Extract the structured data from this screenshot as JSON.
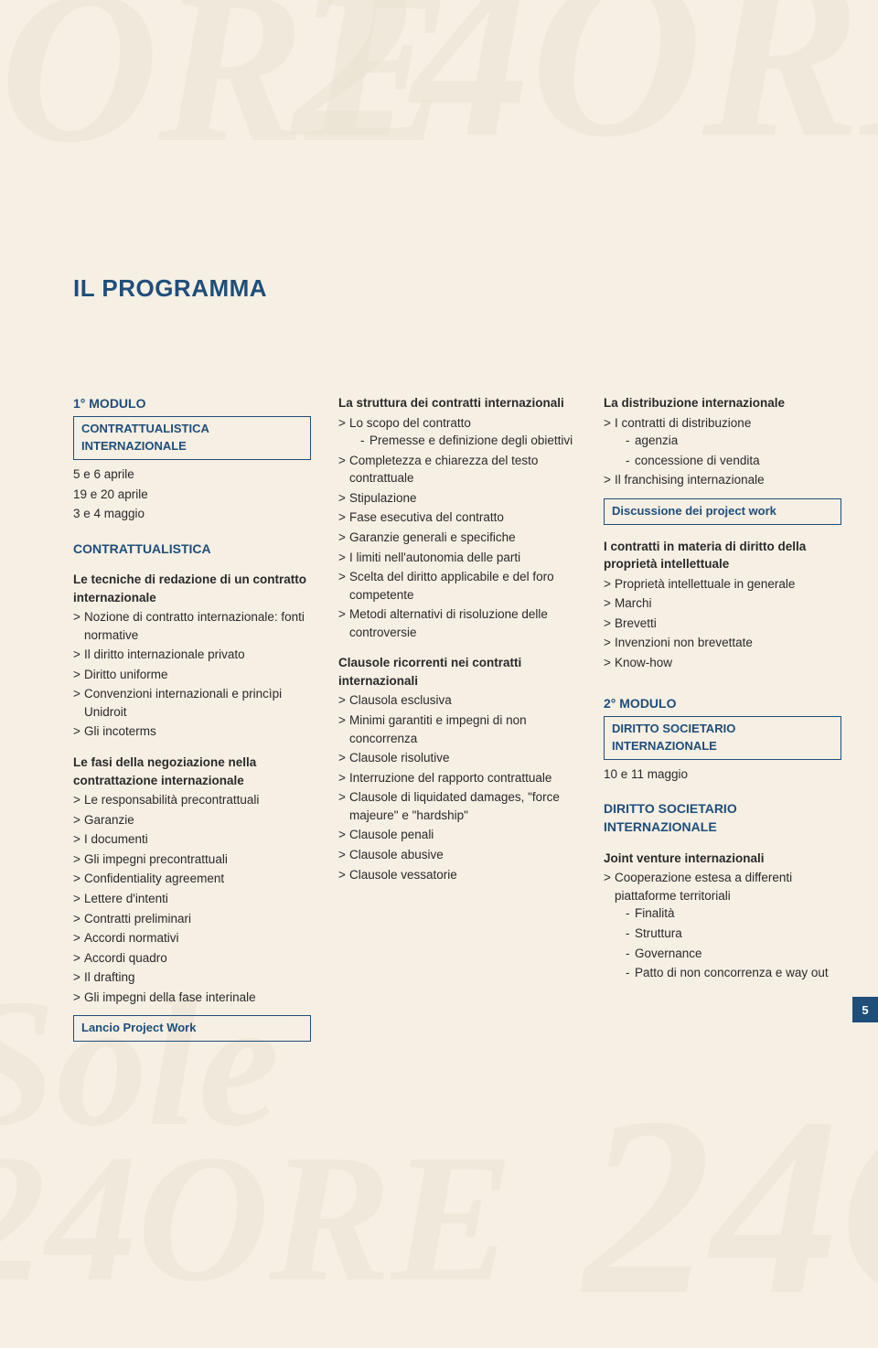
{
  "page": {
    "title": "IL PROGRAMMA",
    "number": "5",
    "background_color": "#f6efe4",
    "accent_color": "#1f4e79",
    "text_color": "#2a2a2a",
    "title_fontsize": 26,
    "body_fontsize": 13.5
  },
  "col1": {
    "module_label": "1° MODULO",
    "module_box": "CONTRATTUALISTICA INTERNAZIONALE",
    "dates": [
      "5 e 6 aprile",
      "19 e 20 aprile",
      "3 e 4 maggio"
    ],
    "section_head": "CONTRATTUALISTICA",
    "sub1_title": "Le tecniche di redazione di un contratto internazionale",
    "sub1_items": [
      "Nozione di contratto internazionale: fonti normative",
      "Il diritto internazionale privato",
      "Diritto uniforme",
      "Convenzioni internazionali e princìpi Unidroit",
      "Gli incoterms"
    ],
    "sub2_title": "Le fasi della negoziazione nella contrattazione internazionale",
    "sub2_items": [
      "Le responsabilità precontrattuali",
      "Garanzie",
      "I documenti",
      "Gli impegni precontrattuali",
      "Confidentiality agreement",
      "Lettere d'intenti",
      "Contratti preliminari",
      "Accordi normativi",
      "Accordi quadro",
      "Il drafting",
      "Gli impegni della fase interinale"
    ],
    "project_box": "Lancio Project Work"
  },
  "col2": {
    "sub1_title": "La struttura dei contratti internazionali",
    "sub1_items": [
      {
        "text": "Lo scopo del contratto",
        "sub": [
          "Premesse e definizione degli obiettivi"
        ]
      },
      {
        "text": "Completezza e chiarezza del testo contrattuale"
      },
      {
        "text": "Stipulazione"
      },
      {
        "text": "Fase esecutiva del contratto"
      },
      {
        "text": "Garanzie generali e specifiche"
      },
      {
        "text": "I limiti nell'autonomia delle parti"
      },
      {
        "text": "Scelta del diritto applicabile e del foro competente"
      },
      {
        "text": "Metodi alternativi di risoluzione delle controversie"
      }
    ],
    "sub2_title": "Clausole ricorrenti nei contratti internazionali",
    "sub2_items": [
      "Clausola esclusiva",
      "Minimi garantiti e impegni di non concorrenza",
      "Clausole risolutive",
      "Interruzione del rapporto contrattuale",
      "Clausole di liquidated damages, \"force majeure\" e \"hardship\"",
      "Clausole penali",
      "Clausole abusive",
      "Clausole vessatorie"
    ]
  },
  "col3": {
    "sub1_title": "La distribuzione internazionale",
    "sub1_items": [
      {
        "text": "I contratti di distribuzione",
        "sub": [
          "agenzia",
          "concessione di vendita"
        ]
      },
      {
        "text": "Il franchising internazionale"
      }
    ],
    "project_box": "Discussione dei project work",
    "sub2_title": "I contratti in materia di diritto della proprietà intellettuale",
    "sub2_items": [
      "Proprietà intellettuale in generale",
      "Marchi",
      "Brevetti",
      "Invenzioni non brevettate",
      "Know-how"
    ],
    "module_label": "2° MODULO",
    "module_box": "DIRITTO SOCIETARIO INTERNAZIONALE",
    "dates": [
      "10 e 11 maggio"
    ],
    "section_head": "DIRITTO SOCIETARIO INTERNAZIONALE",
    "sub3_title": "Joint venture internazionali",
    "sub3_items": [
      {
        "text": "Cooperazione estesa a differenti piattaforme territoriali",
        "sub": [
          "Finalità",
          "Struttura",
          "Governance",
          "Patto di non concorrenza e way out"
        ]
      }
    ]
  }
}
